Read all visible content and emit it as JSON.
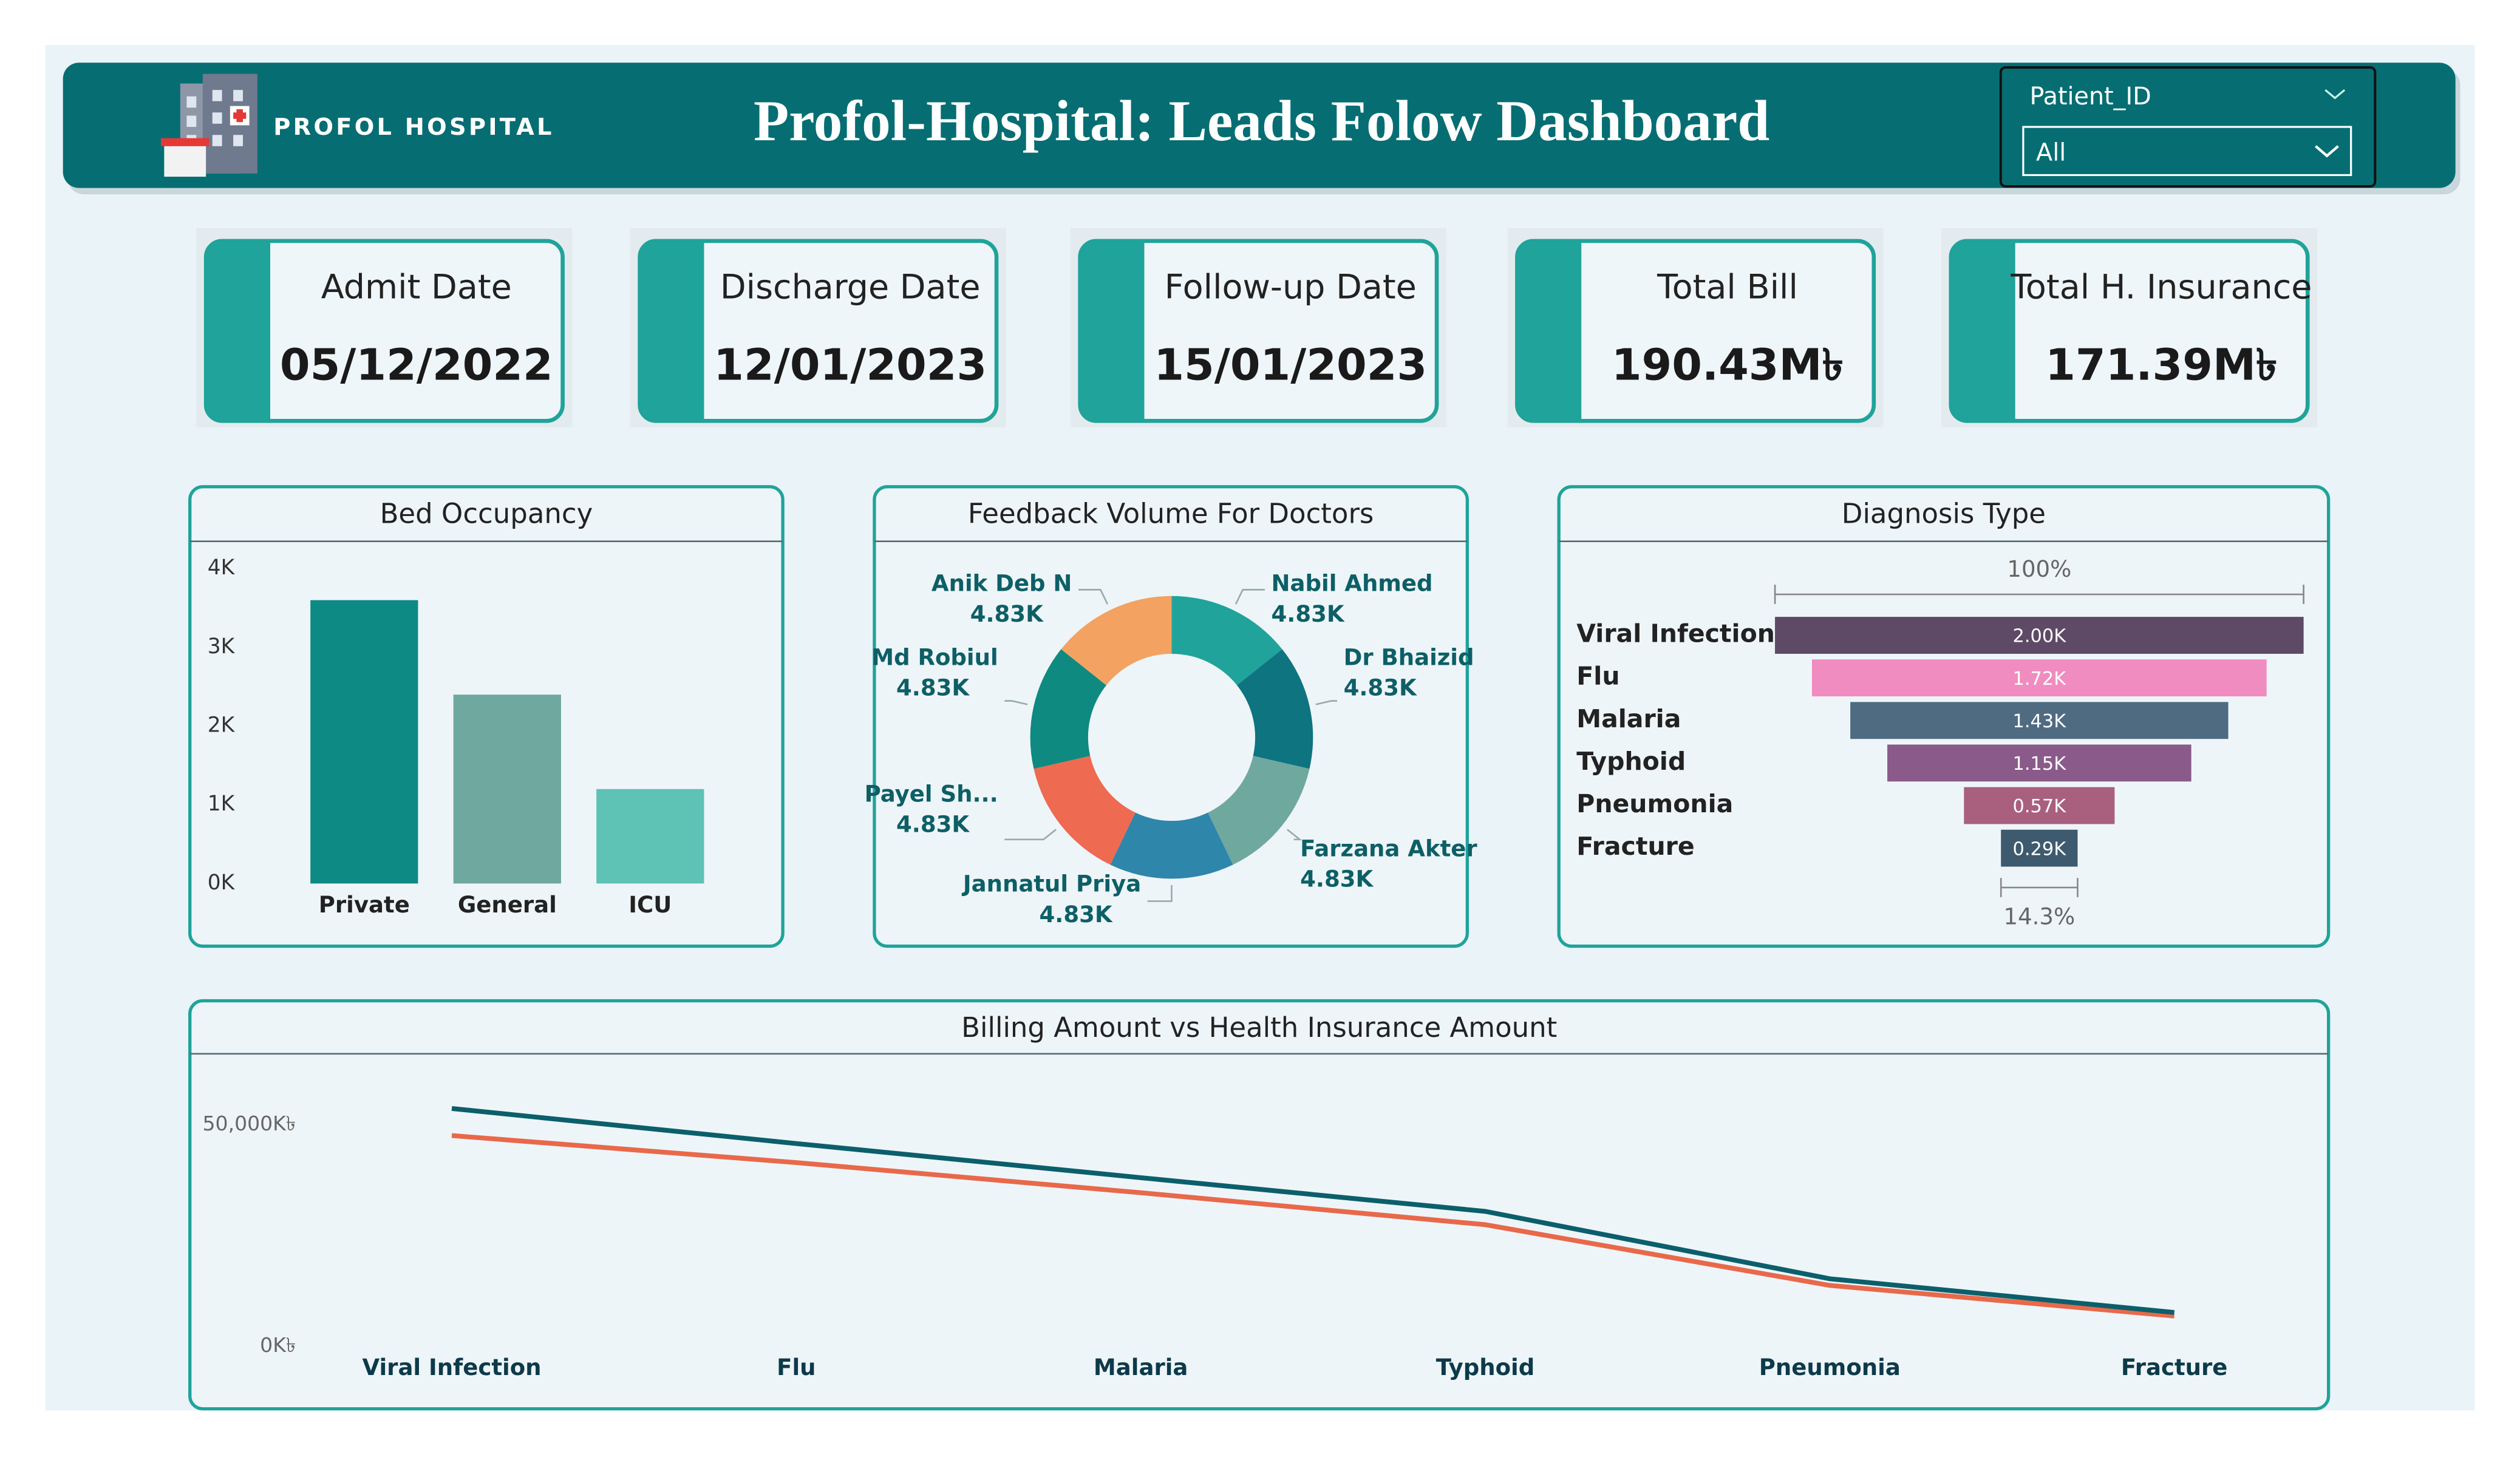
{
  "header": {
    "logo_text": "PROFOL HOSPITAL",
    "title": "Profol-Hospital: Leads Folow Dashboard",
    "filter": {
      "label": "Patient_ID",
      "value": "All"
    }
  },
  "kpis": [
    {
      "label": "Admit Date",
      "value": "05/12/2022"
    },
    {
      "label": "Discharge Date",
      "value": "12/01/2023"
    },
    {
      "label": "Follow-up Date",
      "value": "15/01/2023"
    },
    {
      "label": "Total Bill",
      "value": "190.43M৳"
    },
    {
      "label": "Total H. Insurance",
      "value": "171.39M৳"
    }
  ],
  "chart_data": [
    {
      "type": "bar",
      "title": "Bed Occupancy",
      "categories": [
        "Private",
        "General",
        "ICU"
      ],
      "values": [
        3600,
        2400,
        1200
      ],
      "colors": [
        "#0e8a84",
        "#6fa89f",
        "#5ec2b5"
      ],
      "ylim": [
        0,
        4000
      ],
      "yticks": [
        {
          "value": 0,
          "label": "0K"
        },
        {
          "value": 1000,
          "label": "1K"
        },
        {
          "value": 2000,
          "label": "2K"
        },
        {
          "value": 3000,
          "label": "3K"
        },
        {
          "value": 4000,
          "label": "4K"
        }
      ]
    },
    {
      "type": "donut",
      "title": "Feedback Volume For Doctors",
      "categories": [
        "Nabil Ahmed",
        "Dr Bhaizid",
        "Farzana Akter",
        "Jannatul Priya",
        "Payel Sh...",
        "Md Robiul",
        "Anik Deb N"
      ],
      "values": [
        4830,
        4830,
        4830,
        4830,
        4830,
        4830,
        4830
      ],
      "value_labels": [
        "4.83K",
        "4.83K",
        "4.83K",
        "4.83K",
        "4.83K",
        "4.83K",
        "4.83K"
      ],
      "colors": [
        "#20a39a",
        "#0d7480",
        "#6fa89f",
        "#2e86ab",
        "#ee6a50",
        "#0f8a80",
        "#f4a261"
      ]
    },
    {
      "type": "funnel",
      "title": "Diagnosis Type",
      "categories": [
        "Viral Infection",
        "Flu",
        "Malaria",
        "Typhoid",
        "Pneumonia",
        "Fracture"
      ],
      "values": [
        2000,
        1720,
        1430,
        1150,
        570,
        290
      ],
      "value_labels": [
        "2.00K",
        "1.72K",
        "1.43K",
        "1.15K",
        "0.57K",
        "0.29K"
      ],
      "colors": [
        "#5e4a66",
        "#f08cbf",
        "#4f6b82",
        "#8a5a8a",
        "#a8607e",
        "#3e5a6e"
      ],
      "top_label": "100%",
      "bottom_label": "14.3%"
    },
    {
      "type": "line",
      "title": "Billing Amount vs Health Insurance Amount",
      "categories": [
        "Viral Infection",
        "Flu",
        "Malaria",
        "Typhoid",
        "Pneumonia",
        "Fracture"
      ],
      "series": [
        {
          "color": "#0b5f6b",
          "values": [
            53600000,
            45700000,
            38000000,
            30400000,
            15200000,
            7600000
          ]
        },
        {
          "color": "#e8694a",
          "values": [
            47500000,
            41400000,
            34600000,
            27400000,
            13700000,
            6800000
          ]
        }
      ],
      "ylim": [
        0,
        60000000
      ],
      "yticks": [
        {
          "value": 0,
          "label": "0K৳"
        },
        {
          "value": 50000000,
          "label": "50,000K৳"
        }
      ]
    }
  ]
}
